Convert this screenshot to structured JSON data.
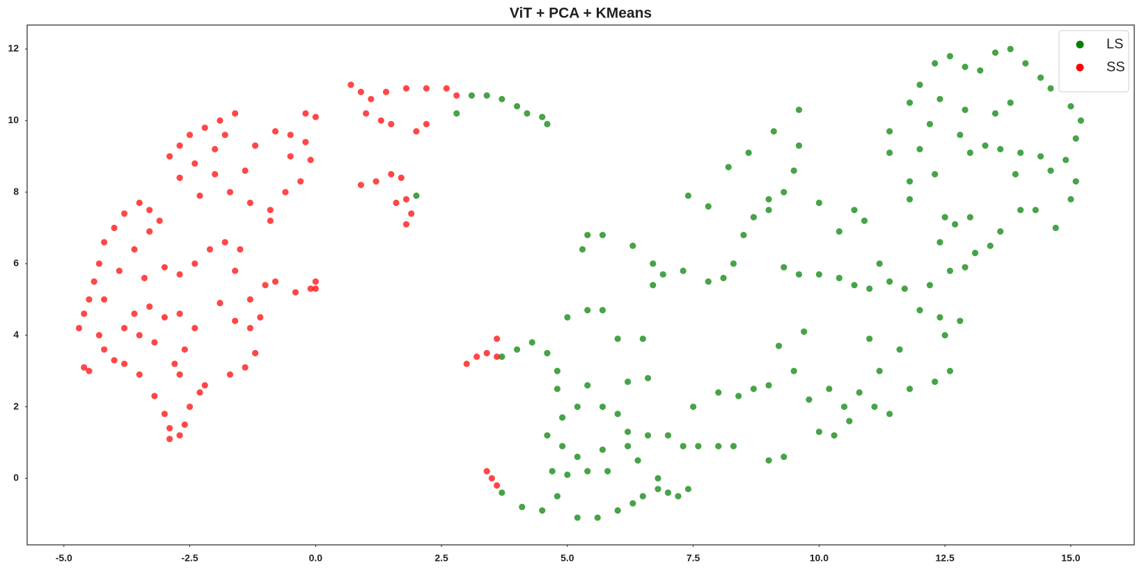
{
  "chart_data": {
    "type": "scatter",
    "title": "ViT + PCA + KMeans",
    "xlim": [
      -5.73,
      16.26
    ],
    "ylim": [
      -1.86,
      12.67
    ],
    "xticks": [
      {
        "value": -5,
        "label": "-5.0"
      },
      -2.5,
      {
        "value": 0,
        "label": "0.0"
      },
      2.5,
      {
        "value": 5,
        "label": "5.0"
      },
      7.5,
      {
        "value": 10,
        "label": "10.0"
      },
      12.5,
      {
        "value": 15,
        "label": "15.0"
      }
    ],
    "yticks": [
      0,
      2,
      4,
      6,
      8,
      10,
      12
    ],
    "grid": false,
    "legend": "upper right",
    "series": [
      {
        "name": "LS",
        "color": "#008000",
        "x": [
          2.8,
          3.1,
          3.4,
          3.7,
          4.0,
          4.2,
          4.5,
          4.6,
          2.0,
          3.7,
          4.0,
          4.3,
          4.6,
          4.8,
          4.8,
          4.9,
          4.6,
          4.9,
          4.7,
          5.0,
          4.8,
          4.5,
          4.1,
          3.7,
          5.2,
          5.6,
          6.0,
          6.3,
          6.5,
          6.8,
          7.0,
          7.2,
          7.4,
          6.8,
          6.4,
          6.2,
          5.8,
          5.4,
          5.2,
          5.7,
          5.2,
          5.4,
          5.7,
          6.0,
          6.2,
          6.6,
          7.0,
          7.3,
          7.6,
          8.0,
          8.3,
          7.5,
          8.0,
          8.4,
          8.7,
          5.0,
          5.4,
          5.7,
          6.0,
          6.5,
          6.6,
          6.2,
          5.3,
          5.4,
          5.7,
          6.3,
          6.7,
          6.9,
          6.7,
          7.3,
          7.8,
          8.1,
          7.4,
          7.8,
          8.2,
          8.6,
          9.1,
          9.6,
          9.6,
          9.5,
          9.3,
          9.0,
          8.7,
          8.5,
          8.3,
          9.0,
          10.0,
          10.4,
          10.7,
          10.9,
          9.3,
          9.6,
          10.0,
          10.4,
          10.7,
          11.0,
          11.2,
          11.4,
          11.7,
          12.0,
          12.4,
          12.8,
          12.5,
          12.6,
          12.3,
          11.8,
          11.6,
          11.2,
          11.0,
          10.8,
          11.1,
          10.5,
          10.2,
          9.8,
          10.0,
          10.3,
          9.5,
          9.2,
          9.7,
          9.0,
          9.3,
          9.0,
          10.6,
          11.4,
          12.2,
          12.6,
          12.9,
          13.1,
          13.4,
          13.6,
          12.7,
          12.4,
          12.5,
          13.0,
          11.8,
          11.8,
          11.4,
          11.4,
          11.8,
          12.0,
          12.3,
          12.6,
          12.9,
          13.2,
          13.5,
          13.8,
          14.1,
          14.4,
          14.6,
          15.0,
          15.2,
          15.1,
          14.9,
          14.6,
          14.4,
          14.0,
          13.6,
          13.3,
          13.0,
          12.8,
          12.9,
          12.4,
          12.2,
          12.0,
          12.3,
          13.8,
          13.5,
          14.0,
          14.3,
          14.7,
          15.0,
          15.1,
          13.9
        ],
        "y": [
          10.2,
          10.7,
          10.7,
          10.6,
          10.4,
          10.2,
          10.1,
          9.9,
          7.9,
          3.4,
          3.6,
          3.8,
          3.5,
          3.0,
          2.5,
          1.7,
          1.2,
          0.9,
          0.2,
          0.1,
          -0.5,
          -0.9,
          -0.8,
          -0.4,
          -1.1,
          -1.1,
          -0.9,
          -0.7,
          -0.5,
          -0.3,
          -0.4,
          -0.5,
          -0.3,
          0.0,
          0.5,
          0.9,
          0.2,
          0.2,
          0.6,
          0.8,
          2.0,
          2.6,
          2.0,
          1.8,
          1.3,
          1.2,
          1.2,
          0.9,
          0.9,
          0.9,
          0.9,
          2.0,
          2.4,
          2.3,
          2.5,
          4.5,
          4.7,
          4.7,
          3.9,
          3.9,
          2.8,
          2.7,
          6.4,
          6.8,
          6.8,
          6.5,
          6.0,
          5.7,
          5.4,
          5.8,
          5.5,
          5.6,
          7.9,
          7.6,
          8.7,
          9.1,
          9.7,
          10.3,
          9.3,
          8.6,
          8.0,
          7.8,
          7.3,
          6.8,
          6.0,
          7.5,
          7.7,
          6.9,
          7.5,
          7.2,
          5.9,
          5.7,
          5.7,
          5.6,
          5.4,
          5.3,
          6.0,
          5.5,
          5.3,
          4.7,
          4.5,
          4.4,
          4.0,
          3.0,
          2.7,
          2.5,
          3.6,
          3.0,
          3.9,
          2.4,
          2.0,
          2.0,
          2.5,
          2.2,
          1.3,
          1.2,
          3.0,
          3.7,
          4.1,
          2.6,
          0.6,
          0.5,
          1.6,
          1.8,
          5.4,
          5.8,
          5.9,
          6.3,
          6.5,
          6.9,
          7.1,
          6.6,
          7.3,
          7.3,
          7.8,
          8.3,
          9.1,
          9.7,
          10.5,
          11.0,
          11.6,
          11.8,
          11.5,
          11.4,
          11.9,
          12.0,
          11.6,
          11.2,
          10.9,
          10.4,
          10.0,
          9.5,
          8.9,
          8.6,
          9.0,
          9.1,
          9.2,
          9.3,
          9.1,
          9.6,
          10.3,
          10.6,
          9.9,
          9.2,
          8.5,
          10.5,
          10.2,
          7.5,
          7.5,
          7.0,
          7.8,
          8.3,
          8.5
        ]
      },
      {
        "name": "SS",
        "color": "#ff0000",
        "x": [
          -4.7,
          -4.6,
          -4.5,
          -4.6,
          -4.5,
          -4.4,
          -4.3,
          -4.2,
          -4.0,
          -3.8,
          -3.5,
          -3.3,
          -3.1,
          -3.3,
          -3.6,
          -3.9,
          -4.2,
          -4.3,
          -4.2,
          -4.0,
          -3.8,
          -3.5,
          -3.2,
          -3.0,
          -2.9,
          -2.9,
          -2.7,
          -2.6,
          -2.5,
          -2.3,
          -2.2,
          -2.7,
          -2.8,
          -2.6,
          -2.4,
          -2.7,
          -3.0,
          -3.3,
          -3.6,
          -3.8,
          -3.5,
          -3.2,
          -3.4,
          -3.0,
          -2.7,
          -2.4,
          -2.1,
          -1.8,
          -1.5,
          -1.6,
          -1.9,
          -1.6,
          -1.3,
          -1.1,
          -1.3,
          -1.0,
          -0.8,
          -1.2,
          -1.4,
          -1.7,
          -0.4,
          -0.1,
          0.0,
          0.0,
          -2.9,
          -2.7,
          -2.5,
          -2.2,
          -1.9,
          -1.6,
          -1.8,
          -2.0,
          -2.4,
          -2.7,
          -2.3,
          -2.0,
          -1.7,
          -1.4,
          -1.2,
          -0.8,
          -0.5,
          -0.2,
          -0.1,
          -0.3,
          -0.6,
          -0.9,
          -1.3,
          -0.9,
          -0.5,
          -0.2,
          0.0,
          0.7,
          0.9,
          1.1,
          1.4,
          1.8,
          2.2,
          2.6,
          2.8,
          1.0,
          1.3,
          1.5,
          2.0,
          2.2,
          0.9,
          1.2,
          1.5,
          1.7,
          1.8,
          1.9,
          1.8,
          1.6,
          3.0,
          3.2,
          3.4,
          3.6,
          3.6,
          3.4,
          3.5,
          3.6
        ],
        "y": [
          4.2,
          3.1,
          3.0,
          4.6,
          5.0,
          5.5,
          6.0,
          6.6,
          7.0,
          7.4,
          7.7,
          7.5,
          7.2,
          6.9,
          6.4,
          5.8,
          5.0,
          4.0,
          3.6,
          3.3,
          3.2,
          2.9,
          2.3,
          1.8,
          1.4,
          1.1,
          1.2,
          1.5,
          2.0,
          2.4,
          2.6,
          2.9,
          3.2,
          3.6,
          4.2,
          4.6,
          4.5,
          4.8,
          4.6,
          4.2,
          4.0,
          3.8,
          5.6,
          5.9,
          5.7,
          6.0,
          6.4,
          6.6,
          6.4,
          5.8,
          4.9,
          4.4,
          4.2,
          4.5,
          5.0,
          5.4,
          5.5,
          3.5,
          3.1,
          2.9,
          5.2,
          5.3,
          5.5,
          5.3,
          9.0,
          9.3,
          9.6,
          9.8,
          10.0,
          10.2,
          9.6,
          9.2,
          8.8,
          8.4,
          7.9,
          8.5,
          8.0,
          8.6,
          9.3,
          9.7,
          9.6,
          9.4,
          8.9,
          8.3,
          8.0,
          7.5,
          7.7,
          7.2,
          9.0,
          10.2,
          10.1,
          11.0,
          10.8,
          10.6,
          10.8,
          10.9,
          10.9,
          10.9,
          10.7,
          10.2,
          10.0,
          9.9,
          9.7,
          9.9,
          8.2,
          8.3,
          8.5,
          8.4,
          7.8,
          7.4,
          7.1,
          7.7,
          3.2,
          3.4,
          3.5,
          3.9,
          3.4,
          0.2,
          0.0,
          -0.2
        ]
      }
    ]
  }
}
